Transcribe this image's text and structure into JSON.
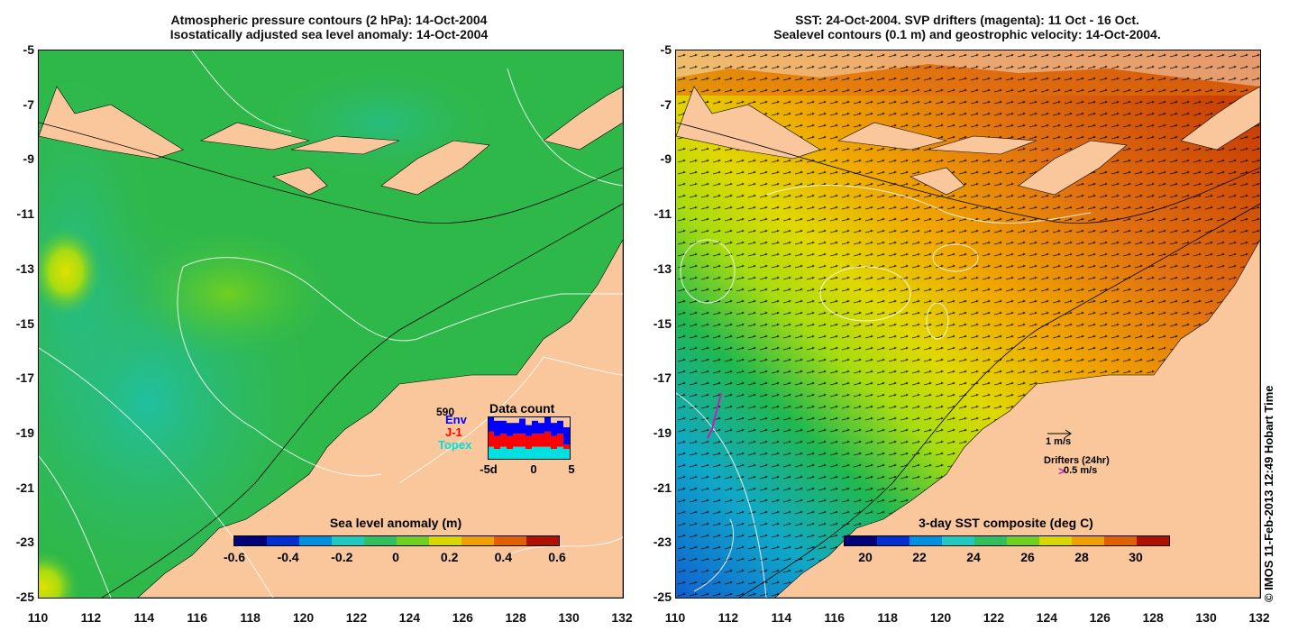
{
  "left": {
    "title_line1": "Atmospheric pressure contours (2 hPa): 14-Oct-2004",
    "title_line2": "Isostatically adjusted sea level anomaly: 14-Oct-2004",
    "colorbar_title": "Sea level anomaly (m)",
    "colorbar_ticks": [
      "-0.6",
      "-0.4",
      "-0.2",
      "0",
      "0.2",
      "0.4",
      "0.6"
    ],
    "colorbar_colors": [
      "#00007a",
      "#0030d0",
      "#0090e0",
      "#20c8c0",
      "#30c060",
      "#70d020",
      "#d8d800",
      "#f0a000",
      "#e06000",
      "#b01000"
    ],
    "inset": {
      "title": "Data count",
      "max_label": "590",
      "series": [
        {
          "name": "Env",
          "color": "#0000ff"
        },
        {
          "name": "J-1",
          "color": "#ff0000"
        },
        {
          "name": "Topex",
          "color": "#00e0e0"
        }
      ],
      "x_ticks": [
        "-5d",
        "0",
        "5"
      ],
      "bars": [
        {
          "topex": 0.3,
          "j1": 0.35,
          "env": 0.35
        },
        {
          "topex": 0.25,
          "j1": 0.3,
          "env": 0.35
        },
        {
          "topex": 0.3,
          "j1": 0.3,
          "env": 0.3
        },
        {
          "topex": 0.25,
          "j1": 0.3,
          "env": 0.3
        },
        {
          "topex": 0.3,
          "j1": 0.3,
          "env": 0.25
        },
        {
          "topex": 0.3,
          "j1": 0.3,
          "env": 0.35
        },
        {
          "topex": 0.25,
          "j1": 0.3,
          "env": 0.25
        },
        {
          "topex": 0.3,
          "j1": 0.3,
          "env": 0.3
        },
        {
          "topex": 0.3,
          "j1": 0.3,
          "env": 0.25
        },
        {
          "topex": 0.3,
          "j1": 0.35,
          "env": 0.35
        },
        {
          "topex": 0.25,
          "j1": 0.3,
          "env": 0.3
        },
        {
          "topex": 0.3,
          "j1": 0.3,
          "env": 0.3
        },
        {
          "topex": 0.25,
          "j1": 0.1,
          "env": 0.4
        }
      ]
    }
  },
  "right": {
    "title_line1": "SST: 24-Oct-2004. SVP drifters (magenta): 11 Oct - 16 Oct.",
    "title_line2": "Sealevel contours (0.1 m) and geostrophic velocity: 14-Oct-2004.",
    "colorbar_title": "3-day SST composite (deg C)",
    "colorbar_ticks": [
      "20",
      "22",
      "24",
      "26",
      "28",
      "30"
    ],
    "colorbar_colors": [
      "#00007a",
      "#0030d0",
      "#0090e0",
      "#20c8c0",
      "#30c060",
      "#70d020",
      "#d8d800",
      "#f0a000",
      "#e06000",
      "#b01000"
    ],
    "velocity_label": "1 m/s",
    "drifters_label": "Drifters (24hr)",
    "drifter_speed_label": "0.5 m/s"
  },
  "axes": {
    "lat_ticks": [
      "-5",
      "-7",
      "-9",
      "-11",
      "-13",
      "-15",
      "-17",
      "-19",
      "-21",
      "-23",
      "-25"
    ],
    "lon_ticks": [
      "110",
      "112",
      "114",
      "116",
      "118",
      "120",
      "122",
      "124",
      "126",
      "128",
      "130",
      "132"
    ]
  },
  "credit": "© IMOS 11-Feb-2013 12:49 Hobart Time",
  "colors": {
    "land": "#f9c79b",
    "sea_left": "#2bb34a",
    "coast": "#000000"
  }
}
